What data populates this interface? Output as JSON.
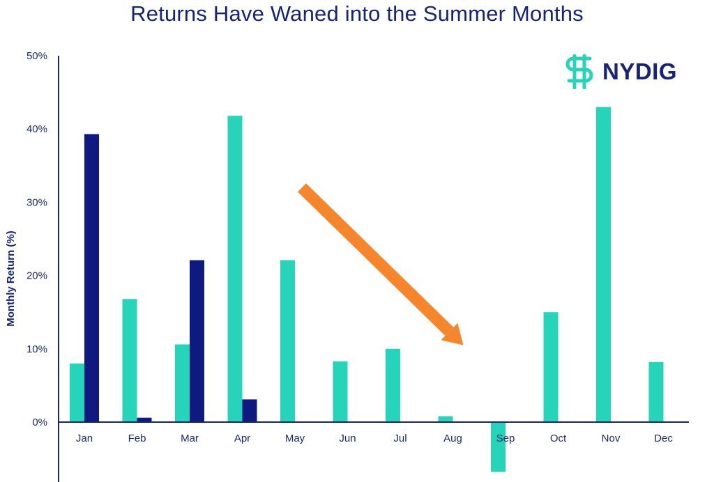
{
  "chart_data": {
    "type": "bar",
    "title": "Returns Have Waned into the Summer Months",
    "ylabel": "Monthly Return (%)",
    "xlabel": "",
    "ylim": [
      -7,
      50
    ],
    "yticks": [
      0,
      10,
      20,
      30,
      40,
      50
    ],
    "ytick_labels": [
      "0%",
      "10%",
      "20%",
      "30%",
      "40%",
      "50%"
    ],
    "categories": [
      "Jan",
      "Feb",
      "Mar",
      "Apr",
      "May",
      "Jun",
      "Jul",
      "Aug",
      "Sep",
      "Oct",
      "Nov",
      "Dec"
    ],
    "series": [
      {
        "color": "#25d4b9",
        "values": [
          8.0,
          16.8,
          10.6,
          41.8,
          22.1,
          8.3,
          10.0,
          0.8,
          -6.8,
          15.0,
          43.0,
          8.2
        ]
      },
      {
        "color": "#0f1a80",
        "values": [
          39.3,
          0.6,
          22.1,
          3.1,
          null,
          null,
          null,
          null,
          null,
          null,
          null,
          null
        ]
      }
    ],
    "grid": false,
    "legend": "none",
    "annotation": {
      "type": "arrow",
      "color": "#f5862b",
      "from": [
        "May",
        32
      ],
      "to": [
        "Aug",
        10.5
      ]
    }
  },
  "logo": {
    "text": "NYDIG",
    "icon": "nydig-logo-icon",
    "color": "#16237a",
    "accent": "#25d4b9"
  }
}
